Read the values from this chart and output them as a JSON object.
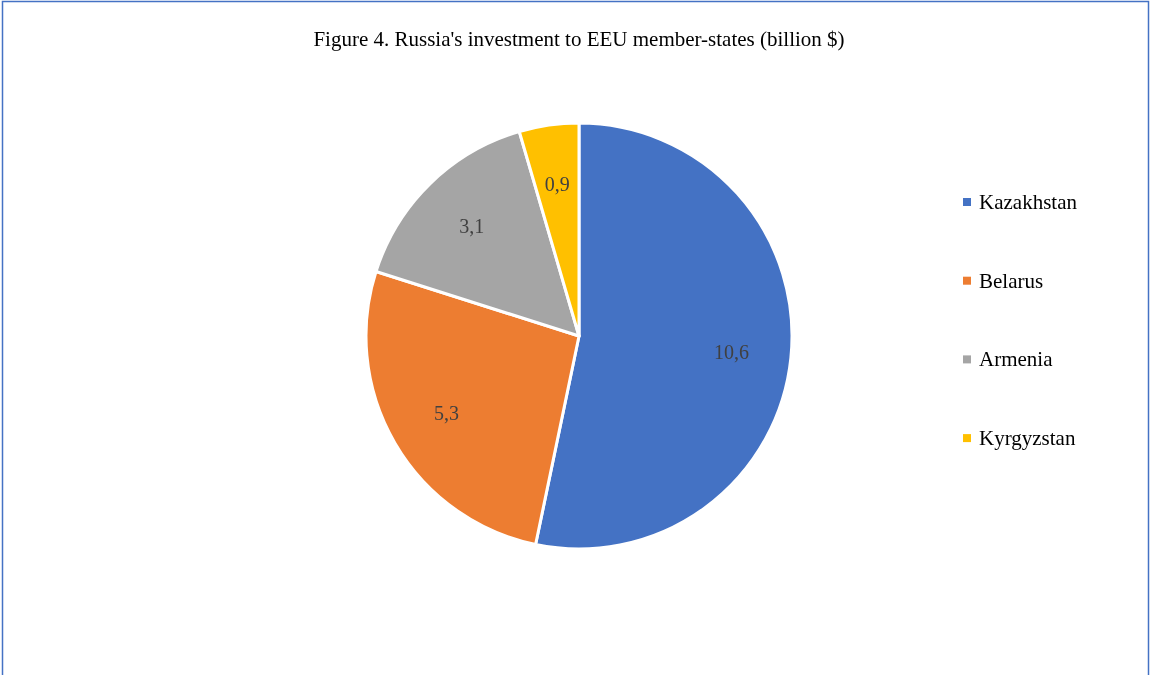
{
  "chart_data": {
    "type": "pie",
    "title": "Figure 4. Russia's investment to EEU member-states (billion $)",
    "categories": [
      "Kazakhstan",
      "Belarus",
      "Armenia",
      "Kyrgyzstan"
    ],
    "values": [
      10.6,
      5.3,
      3.1,
      0.9
    ],
    "value_labels": [
      "10,6",
      "5,3",
      "3,1",
      "0,9"
    ],
    "colors": [
      "#4472c4",
      "#ed7d31",
      "#a5a5a5",
      "#ffc000"
    ],
    "legend": "right"
  }
}
